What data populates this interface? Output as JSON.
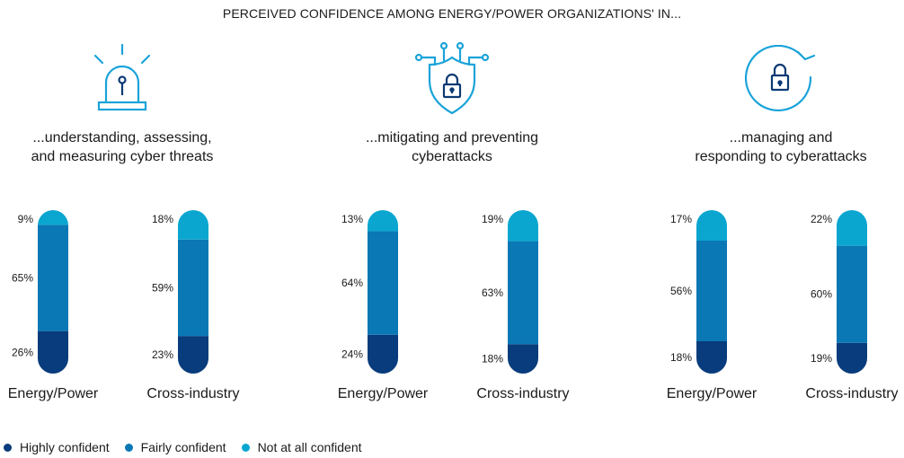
{
  "title": "PERCEIVED CONFIDENCE AMONG ENERGY/POWER ORGANIZATIONS' IN...",
  "colors": {
    "highly": "#083c7c",
    "fairly": "#0a78b4",
    "not_at_all": "#0aa6d0",
    "icon_stroke": "#1aa3d9",
    "icon_dark": "#0b3a73"
  },
  "legend": [
    {
      "label": "Highly confident",
      "color": "#083c7c"
    },
    {
      "label": "Fairly confident",
      "color": "#0a78b4"
    },
    {
      "label": "Not at all confident",
      "color": "#0aa6d0"
    }
  ],
  "chart_data": [
    {
      "type": "bar",
      "stacked": true,
      "icon": "alarm-light-icon",
      "heading": [
        "...understanding, assessing,",
        "and measuring cyber threats"
      ],
      "categories": [
        "Energy/Power",
        "Cross-industry"
      ],
      "series": [
        {
          "name": "Highly confident",
          "values": [
            26,
            23
          ],
          "labels": [
            "26%",
            "23%"
          ]
        },
        {
          "name": "Fairly confident",
          "values": [
            65,
            59
          ],
          "labels": [
            "65%",
            "59%"
          ]
        },
        {
          "name": "Not at all confident",
          "values": [
            9,
            18
          ],
          "labels": [
            "9%",
            "18%"
          ]
        }
      ]
    },
    {
      "type": "bar",
      "stacked": true,
      "icon": "shield-lock-icon",
      "heading": [
        "...mitigating and preventing",
        "cyberattacks"
      ],
      "categories": [
        "Energy/Power",
        "Cross-industry"
      ],
      "series": [
        {
          "name": "Highly confident",
          "values": [
            24,
            18
          ],
          "labels": [
            "24%",
            "18%"
          ]
        },
        {
          "name": "Fairly confident",
          "values": [
            64,
            63
          ],
          "labels": [
            "64%",
            "63%"
          ]
        },
        {
          "name": "Not at all confident",
          "values": [
            13,
            19
          ],
          "labels": [
            "13%",
            "19%"
          ]
        }
      ]
    },
    {
      "type": "bar",
      "stacked": true,
      "icon": "lock-refresh-icon",
      "heading": [
        "...managing and",
        "responding to cyberattacks"
      ],
      "categories": [
        "Energy/Power",
        "Cross-industry"
      ],
      "series": [
        {
          "name": "Highly confident",
          "values": [
            18,
            19
          ],
          "labels": [
            "18%",
            "19%"
          ]
        },
        {
          "name": "Fairly confident",
          "values": [
            56,
            60
          ],
          "labels": [
            "56%",
            "60%"
          ]
        },
        {
          "name": "Not at all confident",
          "values": [
            17,
            22
          ],
          "labels": [
            "17%",
            "22%"
          ]
        }
      ]
    }
  ]
}
